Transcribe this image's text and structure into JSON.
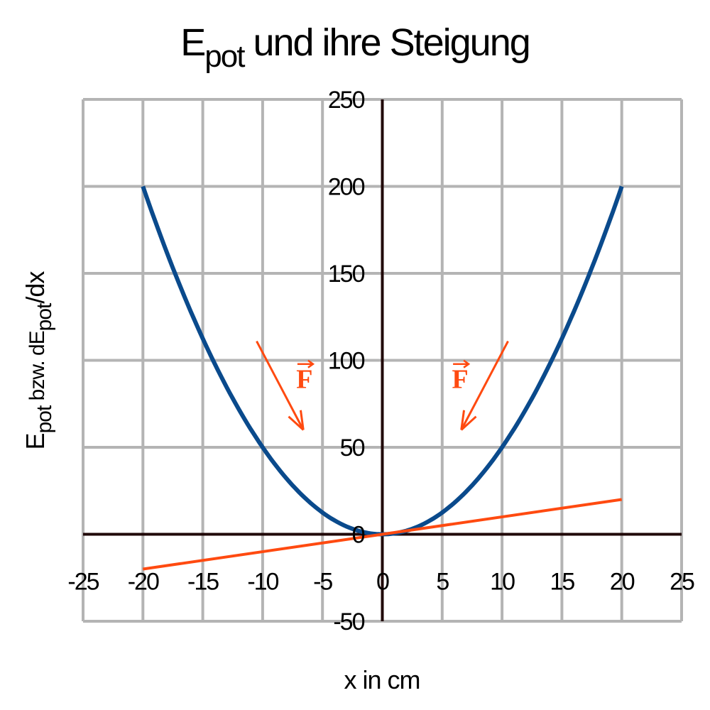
{
  "chart_data": {
    "type": "line",
    "title": {
      "main": "E",
      "sub": "pot",
      "rest": " und ihre Steigung"
    },
    "xlabel": "x in cm",
    "ylabel": {
      "a": "E",
      "a_sub": "pot",
      "b": " bzw. dE",
      "b_sub": "pot",
      "c": "/dx"
    },
    "xlim": [
      -25,
      25
    ],
    "ylim": [
      -50,
      250
    ],
    "x_ticks": [
      "-25",
      "-20",
      "-15",
      "-10",
      "-5",
      "0",
      "5",
      "10",
      "15",
      "20",
      "25"
    ],
    "y_ticks": [
      "-50",
      "0",
      "50",
      "100",
      "150",
      "200",
      "250"
    ],
    "grid": true,
    "series": [
      {
        "formula": "0.5*x^2",
        "x": [
          -20,
          -15,
          -10,
          -5,
          0,
          5,
          10,
          15,
          20
        ],
        "y": [
          200,
          112.5,
          50,
          12.5,
          0,
          12.5,
          50,
          112.5,
          200
        ],
        "color": "#0a4a8c"
      },
      {
        "formula": "x",
        "x": [
          -20,
          20
        ],
        "y": [
          -20,
          20
        ],
        "color": "#ff4a10"
      }
    ],
    "annotations": [
      {
        "text": "F",
        "vector_arrow": true,
        "color": "#ff4a10",
        "arrow_from": [
          -10.5,
          111
        ],
        "arrow_to": [
          -6.6,
          60
        ],
        "label_at": [
          -6.5,
          84
        ]
      },
      {
        "text": "F",
        "vector_arrow": true,
        "color": "#ff4a10",
        "arrow_from": [
          10.5,
          111
        ],
        "arrow_to": [
          6.6,
          60
        ],
        "label_at": [
          6.5,
          84
        ]
      }
    ],
    "colors": {
      "grid": "#b4b4b4",
      "axis": "#200808"
    }
  }
}
